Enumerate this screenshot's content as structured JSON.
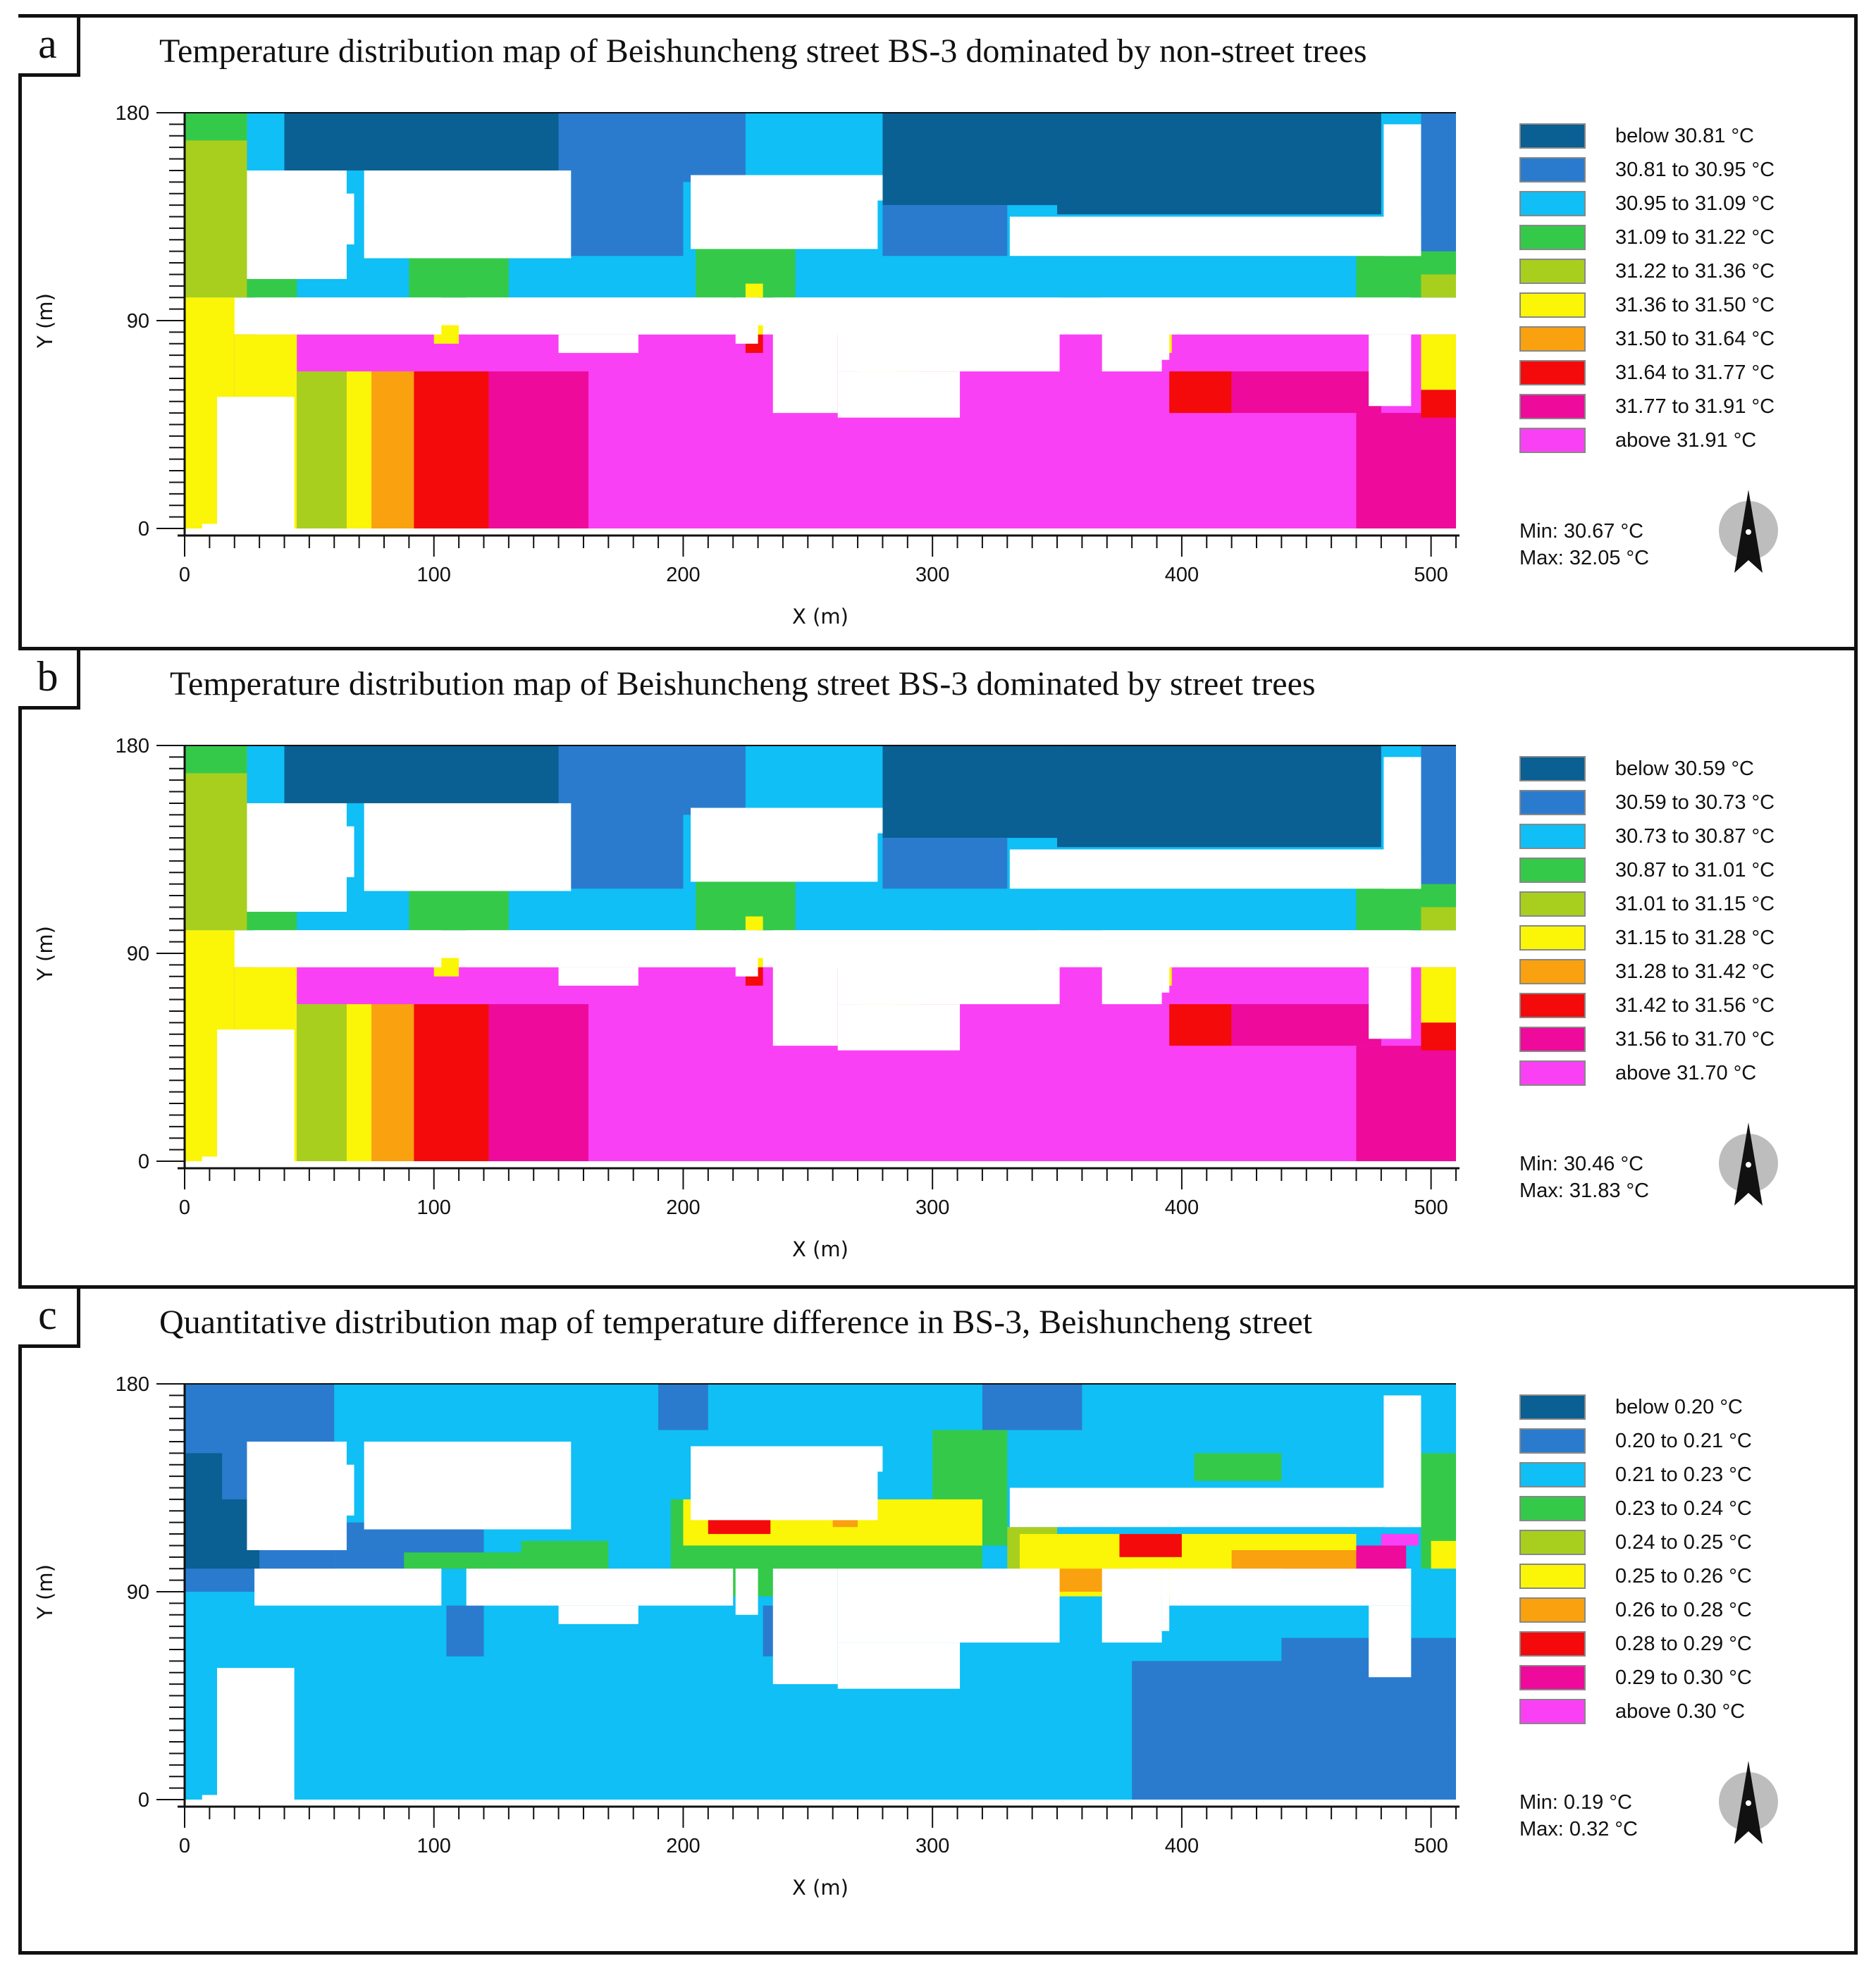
{
  "figure": {
    "panels": [
      {
        "letter": "a",
        "title": "Temperature distribution map of Beishuncheng street BS-3 dominated by non-street trees",
        "legend": [
          "below 30.81 °C",
          "30.81 to 30.95 °C",
          "30.95 to 31.09 °C",
          "31.09 to 31.22 °C",
          "31.22 to 31.36 °C",
          "31.36 to 31.50 °C",
          "31.50 to 31.64 °C",
          "31.64 to 31.77 °C",
          "31.77 to 31.91 °C",
          "above 31.91 °C"
        ],
        "min_label": "Min: 30.67 °C",
        "max_label": "Max: 32.05 °C"
      },
      {
        "letter": "b",
        "title": "Temperature distribution map of Beishuncheng street BS-3 dominated by street trees",
        "legend": [
          "below 30.59 °C",
          "30.59 to 30.73 °C",
          "30.73 to 30.87 °C",
          "30.87 to 31.01 °C",
          "31.01 to 31.15 °C",
          "31.15 to 31.28 °C",
          "31.28 to 31.42 °C",
          "31.42 to 31.56 °C",
          "31.56 to 31.70 °C",
          "above 31.70 °C"
        ],
        "min_label": "Min: 30.46 °C",
        "max_label": "Max: 31.83 °C"
      },
      {
        "letter": "c",
        "title": "Quantitative distribution map of temperature difference in BS-3, Beishuncheng street",
        "legend": [
          "below 0.20 °C",
          "0.20 to 0.21 °C",
          "0.21 to 0.23 °C",
          "0.23 to 0.24 °C",
          "0.24 to 0.25 °C",
          "0.25 to 0.26 °C",
          "0.26 to 0.28 °C",
          "0.28 to 0.29 °C",
          "0.29 to 0.30 °C",
          "above 0.30 °C"
        ],
        "min_label": "Min: 0.19 °C",
        "max_label": "Max: 0.32 °C"
      }
    ],
    "palette": [
      "#0a5f93",
      "#2a7bce",
      "#0fbff5",
      "#35c94a",
      "#a8cf1e",
      "#fbf507",
      "#f9a10e",
      "#f40a0a",
      "#ee0a9b",
      "#fa40f5"
    ]
  },
  "chart_data": [
    {
      "type": "heatmap",
      "title": "Temperature distribution map of Beishuncheng street BS-3 dominated by non-street trees",
      "xlabel": "X (m)",
      "ylabel": "Y (m)",
      "xlim": [
        0,
        510
      ],
      "ylim": [
        0,
        180
      ],
      "xticks": [
        0,
        100,
        200,
        300,
        400,
        500
      ],
      "yticks": [
        0,
        90,
        180
      ],
      "classes": [
        "below 30.81",
        "30.81-30.95",
        "30.95-31.09",
        "31.09-31.22",
        "31.22-31.36",
        "31.36-31.50",
        "31.50-31.64",
        "31.64-31.77",
        "31.77-31.91",
        "above 31.91"
      ],
      "min": 30.67,
      "max": 32.05,
      "unit": "°C"
    },
    {
      "type": "heatmap",
      "title": "Temperature distribution map of Beishuncheng street BS-3 dominated by street trees",
      "xlabel": "X (m)",
      "ylabel": "Y (m)",
      "xlim": [
        0,
        510
      ],
      "ylim": [
        0,
        180
      ],
      "xticks": [
        0,
        100,
        200,
        300,
        400,
        500
      ],
      "yticks": [
        0,
        90,
        180
      ],
      "classes": [
        "below 30.59",
        "30.59-30.73",
        "30.73-30.87",
        "30.87-31.01",
        "31.01-31.15",
        "31.15-31.28",
        "31.28-31.42",
        "31.42-31.56",
        "31.56-31.70",
        "above 31.70"
      ],
      "min": 30.46,
      "max": 31.83,
      "unit": "°C"
    },
    {
      "type": "heatmap",
      "title": "Quantitative distribution map of temperature difference in BS-3, Beishuncheng street",
      "xlabel": "X (m)",
      "ylabel": "Y (m)",
      "xlim": [
        0,
        510
      ],
      "ylim": [
        0,
        180
      ],
      "xticks": [
        0,
        100,
        200,
        300,
        400,
        500
      ],
      "yticks": [
        0,
        90,
        180
      ],
      "classes": [
        "below 0.20",
        "0.20-0.21",
        "0.21-0.23",
        "0.23-0.24",
        "0.24-0.25",
        "0.25-0.26",
        "0.26-0.28",
        "0.28-0.29",
        "0.29-0.30",
        "above 0.30"
      ],
      "min": 0.19,
      "max": 0.32,
      "unit": "°C"
    }
  ]
}
